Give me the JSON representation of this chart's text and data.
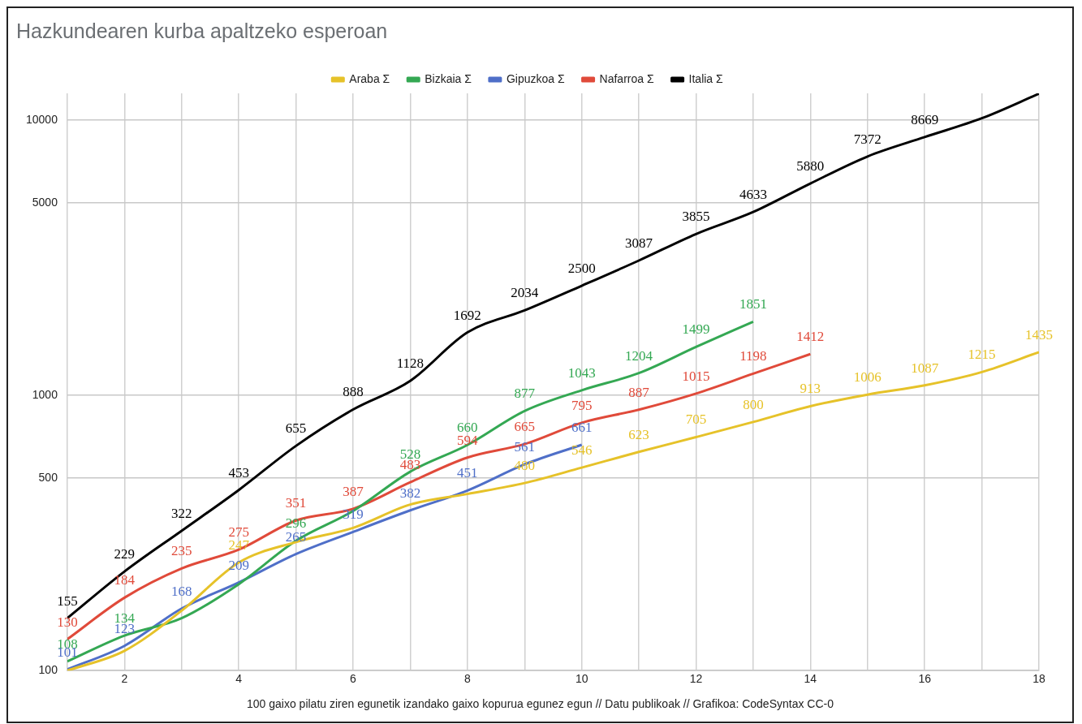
{
  "chart_data": {
    "type": "line",
    "title": "Hazkundearen kurba apaltzeko esperoan",
    "annotations": [
      "100 gaixo pilatu ziren egunetik izandako gaixo kopurua egunez egun // Datu publikoak // Grafikoa: CodeSyntax CC-0"
    ],
    "x": [
      1,
      2,
      3,
      4,
      5,
      6,
      7,
      8,
      9,
      10,
      11,
      12,
      13,
      14,
      15,
      16,
      17,
      18
    ],
    "series": [
      {
        "name": "Araba Σ",
        "color": "#e6c229",
        "values": [
          100,
          118,
          165,
          247,
          293,
          330,
          401,
          438,
          480,
          546,
          623,
          705,
          800,
          913,
          1006,
          1087,
          1215,
          1435
        ],
        "value_labels": [
          null,
          null,
          null,
          "247",
          null,
          null,
          null,
          null,
          "480",
          "546",
          "623",
          "705",
          "800",
          "913",
          "1006",
          "1087",
          "1215",
          "1435"
        ]
      },
      {
        "name": "Bizkaia Σ",
        "color": "#34a853",
        "values": [
          108,
          134,
          155,
          206,
          296,
          380,
          528,
          660,
          877,
          1043,
          1204,
          1499,
          1851,
          null,
          null,
          null,
          null,
          null
        ],
        "value_labels": [
          "108",
          "134",
          null,
          null,
          "296",
          null,
          "528",
          "660",
          "877",
          "1043",
          "1204",
          "1499",
          "1851",
          null,
          null,
          null,
          null,
          null
        ]
      },
      {
        "name": "Gipuzkoa Σ",
        "color": "#4f6fc8",
        "values": [
          101,
          123,
          168,
          209,
          265,
          319,
          382,
          451,
          561,
          661,
          null,
          null,
          null,
          null,
          null,
          null,
          null,
          null
        ],
        "data_labels": true
      },
      {
        "name": "Nafarroa Σ",
        "color": "#e04a3a",
        "values": [
          130,
          184,
          235,
          275,
          351,
          387,
          483,
          594,
          665,
          795,
          887,
          1015,
          1198,
          1412,
          null,
          null,
          null,
          null
        ],
        "data_labels": true
      },
      {
        "name": "Italia Σ",
        "color": "#000000",
        "values": [
          155,
          229,
          322,
          453,
          655,
          888,
          1128,
          1692,
          2034,
          2500,
          3087,
          3855,
          4633,
          5880,
          7372,
          8669,
          10149,
          12462
        ],
        "value_labels": [
          "155",
          "229",
          "322",
          "453",
          "655",
          "888",
          "1128",
          "1692",
          "2034",
          "2500",
          "3087",
          "3855",
          "4633",
          "5880",
          "7372",
          "8669",
          null,
          null
        ]
      }
    ],
    "xlim": [
      1,
      18
    ],
    "xticks": [
      {
        "value": 1,
        "label": null
      },
      2,
      {
        "value": 3,
        "label": null
      },
      4,
      {
        "value": 5,
        "label": null
      },
      6,
      {
        "value": 7,
        "label": null
      },
      8,
      {
        "value": 9,
        "label": null
      },
      10,
      {
        "value": 11,
        "label": null
      },
      12,
      {
        "value": 13,
        "label": null
      },
      14,
      {
        "value": 15,
        "label": null
      },
      16,
      {
        "value": 17,
        "label": null
      },
      18
    ],
    "ylim": [
      100,
      12500
    ],
    "yticks": [
      100,
      500,
      1000,
      5000,
      10000
    ],
    "log": "y",
    "grid": true,
    "legend": "top",
    "marker": "none",
    "line_style": "solid"
  }
}
